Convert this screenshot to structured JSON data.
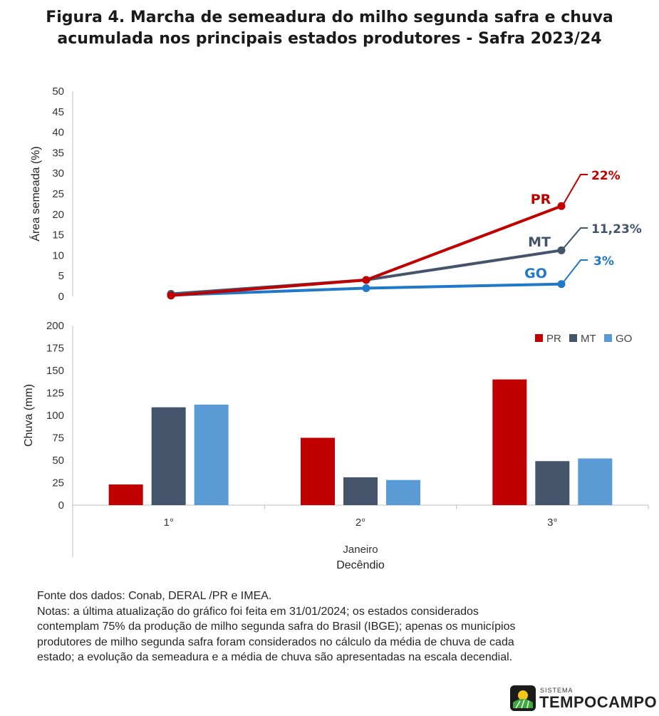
{
  "title": {
    "line1": "Figura 4. Marcha de semeadura do milho segunda safra e chuva",
    "line2": "acumulada nos principais estados produtores - Safra 2023/24"
  },
  "chart_data": [
    {
      "type": "line",
      "ylabel": "Área semeada (%)",
      "ylim": [
        0,
        50
      ],
      "yticks": [
        0,
        5,
        10,
        15,
        20,
        25,
        30,
        35,
        40,
        45,
        50
      ],
      "categories": [
        "1°",
        "2°",
        "3°"
      ],
      "series": [
        {
          "name": "PR",
          "values": [
            0.2,
            4,
            22
          ],
          "color": "#C00000",
          "end_label": "22%"
        },
        {
          "name": "MT",
          "values": [
            0.6,
            4,
            11.23
          ],
          "color": "#44546A",
          "end_label": "11,23%"
        },
        {
          "name": "GO",
          "values": [
            0.3,
            2,
            3
          ],
          "color": "#1F78C8",
          "end_label": "3%"
        }
      ]
    },
    {
      "type": "bar",
      "ylabel": "Chuva (mm)",
      "ylim": [
        0,
        200
      ],
      "yticks": [
        0,
        25,
        50,
        75,
        100,
        125,
        150,
        175,
        200
      ],
      "categories": [
        "1°",
        "2°",
        "3°"
      ],
      "xlabel_line1": "Janeiro",
      "xlabel_line2": "Decêndio",
      "legend_position": "top-right",
      "series": [
        {
          "name": "PR",
          "values": [
            23,
            75,
            140
          ],
          "color": "#C00000"
        },
        {
          "name": "MT",
          "values": [
            109,
            31,
            49
          ],
          "color": "#44546A"
        },
        {
          "name": "GO",
          "values": [
            112,
            28,
            52
          ],
          "color": "#5B9BD5"
        }
      ]
    }
  ],
  "notes": {
    "source": "Fonte dos dados: Conab, DERAL /PR e IMEA.",
    "line1": "Notas: a última atualização do gráfico foi feita em 31/01/2024; os estados considerados",
    "line2": "contemplam 75% da produção de milho segunda safra do Brasil (IBGE); apenas os municípios",
    "line3": "produtores de milho segunda safra foram considerados no cálculo da média de chuva de cada",
    "line4": "estado; a evolução da semeadura e a média de chuva são apresentadas na escala decendial."
  },
  "logo": {
    "small": "SISTEMA",
    "name": "TEMPOCAMPO"
  }
}
